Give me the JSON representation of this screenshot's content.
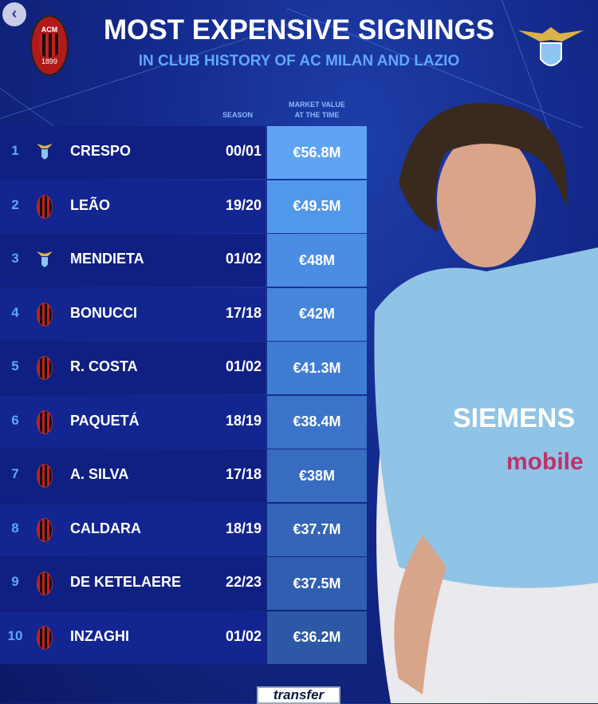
{
  "header": {
    "title": "MOST EXPENSIVE SIGNINGS",
    "subtitle": "IN CLUB HISTORY OF AC MILAN AND LAZIO",
    "milan_logo_text": "ACM 1899",
    "lazio_logo_text": "S.S.LAZIO"
  },
  "columns": {
    "season": "SEASON",
    "value_line1": "MARKET VALUE",
    "value_line2": "AT THE TIME"
  },
  "rows": [
    {
      "rank": "1",
      "club": "lazio",
      "name": "CRESPO",
      "season": "00/01",
      "value": "€56.8M"
    },
    {
      "rank": "2",
      "club": "milan",
      "name": "LEÃO",
      "season": "19/20",
      "value": "€49.5M"
    },
    {
      "rank": "3",
      "club": "lazio",
      "name": "MENDIETA",
      "season": "01/02",
      "value": "€48M"
    },
    {
      "rank": "4",
      "club": "milan",
      "name": "BONUCCI",
      "season": "17/18",
      "value": "€42M"
    },
    {
      "rank": "5",
      "club": "milan",
      "name": "R. COSTA",
      "season": "01/02",
      "value": "€41.3M"
    },
    {
      "rank": "6",
      "club": "milan",
      "name": "PAQUETÁ",
      "season": "18/19",
      "value": "€38.4M"
    },
    {
      "rank": "7",
      "club": "milan",
      "name": "A. SILVA",
      "season": "17/18",
      "value": "€38M"
    },
    {
      "rank": "8",
      "club": "milan",
      "name": "CALDARA",
      "season": "18/19",
      "value": "€37.7M"
    },
    {
      "rank": "9",
      "club": "milan",
      "name": "DE KETELAERE",
      "season": "22/23",
      "value": "€37.5M"
    },
    {
      "rank": "10",
      "club": "milan",
      "name": "INZAGHI",
      "season": "01/02",
      "value": "€36.2M"
    }
  ],
  "value_colors": [
    "#5fa4f2",
    "#5197ea",
    "#4a8de2",
    "#4585da",
    "#3f7dd2",
    "#3b74c8",
    "#376cbf",
    "#3365b8",
    "#305eb0",
    "#2d58a8"
  ],
  "player_shirt_text": {
    "line1": "SIEMENS",
    "line2": "mobile"
  },
  "back_button": {
    "icon": "chevron-left-icon",
    "label": "‹"
  },
  "footer": {
    "brand": "transfer"
  }
}
